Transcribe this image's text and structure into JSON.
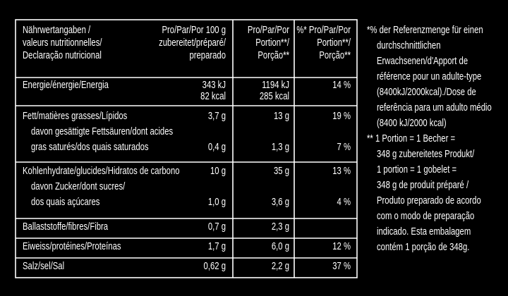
{
  "header": {
    "col0": [
      "Nährwertangaben /",
      "valeurs nutritionnelles/",
      "Declaração nutricional"
    ],
    "col1": [
      "Pro/Par/Por 100 g",
      "zubereitet/préparé/",
      "preparado"
    ],
    "col2": [
      "Pro/Par/Por",
      "Portion**/",
      "Porção**"
    ],
    "col3": [
      "%* Pro/Par/Por",
      "Portion**/",
      "Porção**"
    ]
  },
  "rows": [
    {
      "label": [
        "Energie/énergie/Energia"
      ],
      "cells": [
        [
          "343 kJ",
          "82 kcal"
        ],
        [
          "1194 kJ",
          "285 kcal"
        ],
        [
          "14 %"
        ]
      ]
    },
    {
      "label": [
        "Fett/matières grasses/Lípidos",
        "davon gesättigte Fettsäuren/dont acides",
        "gras saturés/dos quais saturados"
      ],
      "cells": [
        [
          "3,7 g",
          null,
          "0,4 g"
        ],
        [
          "13 g",
          null,
          "1,3 g"
        ],
        [
          "19 %",
          null,
          "7 %"
        ]
      ]
    },
    {
      "label": [
        "Kohlenhydrate/glucides/Hidratos de carbono",
        "davon Zucker/dont sucres/",
        "dos quais açúcares"
      ],
      "cells": [
        [
          "10 g",
          null,
          "1,0 g"
        ],
        [
          "35 g",
          null,
          "3,6 g"
        ],
        [
          "13 %",
          null,
          "4 %"
        ]
      ]
    },
    {
      "label": [
        "Ballaststoffe/fibres/Fibra"
      ],
      "cells": [
        [
          "0,7 g"
        ],
        [
          "2,3 g"
        ],
        []
      ]
    },
    {
      "label": [
        "Eiweiss/protéines/Proteínas"
      ],
      "cells": [
        [
          "1,7 g"
        ],
        [
          "6,0 g"
        ],
        [
          "12 %"
        ]
      ]
    },
    {
      "label": [
        "Salz/sel/Sal"
      ],
      "cells": [
        [
          "0,62 g"
        ],
        [
          "2,2 g"
        ],
        [
          "37 %"
        ]
      ]
    }
  ],
  "footnote": [
    "*% der Referenzmenge für einen",
    "durchschnittlichen",
    "Erwachsenen/d'Apport de",
    "référence pour un adulte-type",
    "(8400kJ/2000kcal)./Dose de",
    "referência para um adulto médio",
    "(8400 kJ/2000 kcal)",
    "** 1 Portion = 1 Becher =",
    "348 g zubereitetes Produkt/",
    "1 portion = 1 gobelet =",
    "348 g de produit préparé /",
    "Produto preparado de acordo",
    "com o modo de preparação",
    "indicado. Esta embalagem",
    "contém 1 porção de 348g."
  ]
}
